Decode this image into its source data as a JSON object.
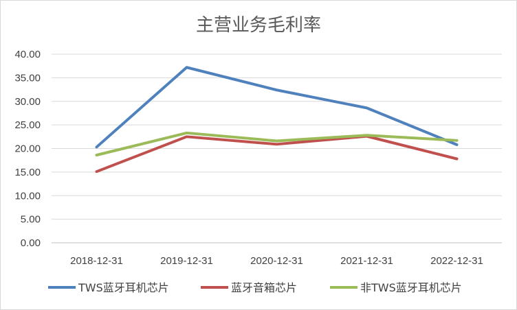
{
  "chart_data": {
    "type": "line",
    "title": "主营业务毛利率",
    "xlabel": "",
    "ylabel": "",
    "categories": [
      "2018-12-31",
      "2019-12-31",
      "2020-12-31",
      "2021-12-31",
      "2022-12-31"
    ],
    "y_ticks": [
      "0.00",
      "5.00",
      "10.00",
      "15.00",
      "20.00",
      "25.00",
      "30.00",
      "35.00",
      "40.00"
    ],
    "ylim": [
      0,
      40
    ],
    "grid": true,
    "legend_position": "bottom",
    "series": [
      {
        "name": "TWS蓝牙耳机芯片",
        "color": "#4f81bd",
        "values": [
          20.3,
          37.2,
          32.4,
          28.6,
          20.8
        ]
      },
      {
        "name": "蓝牙音箱芯片",
        "color": "#c0504d",
        "values": [
          15.1,
          22.5,
          20.9,
          22.6,
          17.8
        ]
      },
      {
        "name": "非TWS蓝牙耳机芯片",
        "color": "#9bbb59",
        "values": [
          18.6,
          23.3,
          21.6,
          22.8,
          21.7
        ]
      }
    ]
  }
}
